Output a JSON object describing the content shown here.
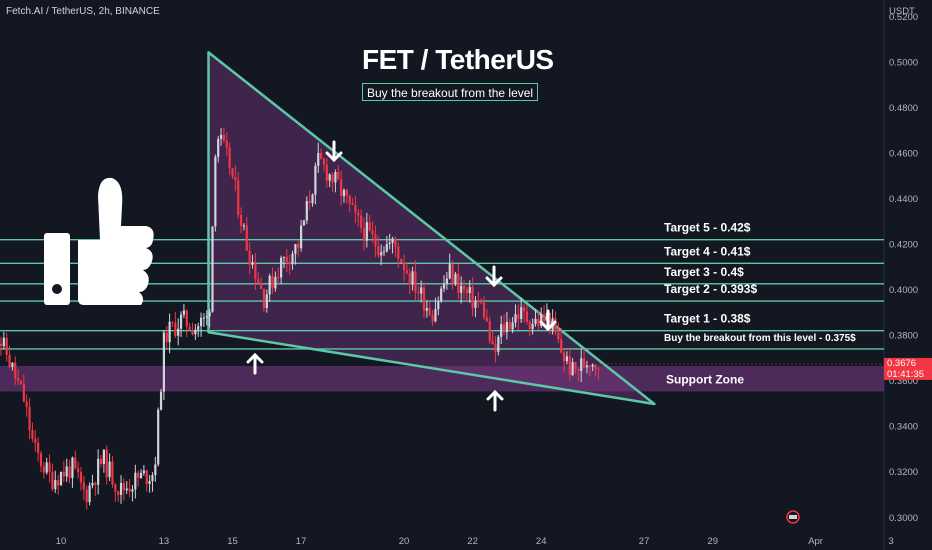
{
  "header": {
    "symbol": "Fetch.AI / TetherUS, 2h, BINANCE"
  },
  "annotations": {
    "title": "FET / TetherUS",
    "subtitle": "Buy the breakout from the level",
    "support_zone_label": "Support Zone",
    "targets": [
      {
        "label": "Target 5 - 0.42$",
        "price": 0.4222
      },
      {
        "label": "Target 4 - 0.41$",
        "price": 0.4118
      },
      {
        "label": "Target 3 - 0.4$",
        "price": 0.4028
      },
      {
        "label": "Target 2 - 0.393$",
        "price": 0.3952
      },
      {
        "label": "Target 1 - 0.38$",
        "price": 0.3822
      },
      {
        "label": "Buy the breakout from this level - 0.375$",
        "price": 0.3742
      }
    ],
    "support_zone": [
      0.3555,
      0.3667
    ]
  },
  "price_axis": {
    "currency": "USDT",
    "ticks": [
      "0.5200",
      "0.5000",
      "0.4800",
      "0.4600",
      "0.4400",
      "0.4200",
      "0.4000",
      "0.3800",
      "0.3600",
      "0.3400",
      "0.3200",
      "0.3000"
    ],
    "current_price": "0.3676",
    "countdown": "01:41:35"
  },
  "time_axis": {
    "ticks": [
      "10",
      "13",
      "15",
      "17",
      "20",
      "22",
      "24",
      "27",
      "29",
      "Apr",
      "3"
    ]
  },
  "colors": {
    "background": "#131722",
    "bull": "#d1d4dc",
    "bear": "#f23645",
    "lines": "#5cc8a8",
    "triangle_fill": "#7b3a86",
    "zone_fill": "#7b3a86",
    "price_tag": "#f23645"
  },
  "chart_data": {
    "type": "candlestick",
    "title": "FET / TetherUS",
    "ylabel": "USDT",
    "ylim": [
      0.2955,
      0.5275
    ],
    "x_ticks": [
      "10",
      "13",
      "15",
      "17",
      "20",
      "22",
      "24",
      "27",
      "29",
      "Apr",
      "3"
    ],
    "grid": false,
    "triangle": {
      "top": [
        14.3,
        0.5045
      ],
      "bottom_left": [
        14.3,
        0.3815
      ],
      "bottom_right": [
        27.3,
        0.35
      ]
    },
    "keypoints": [
      [
        8.0,
        0.387
      ],
      [
        8.5,
        0.372
      ],
      [
        9.0,
        0.352
      ],
      [
        9.3,
        0.33
      ],
      [
        9.8,
        0.317
      ],
      [
        10.4,
        0.322
      ],
      [
        10.8,
        0.31
      ],
      [
        11.3,
        0.326
      ],
      [
        11.8,
        0.312
      ],
      [
        12.3,
        0.317
      ],
      [
        12.8,
        0.32
      ],
      [
        13.1,
        0.38
      ],
      [
        13.6,
        0.387
      ],
      [
        14.0,
        0.384
      ],
      [
        14.4,
        0.388
      ],
      [
        14.6,
        0.47
      ],
      [
        15.0,
        0.455
      ],
      [
        15.5,
        0.42
      ],
      [
        16.0,
        0.397
      ],
      [
        16.5,
        0.412
      ],
      [
        17.0,
        0.42
      ],
      [
        17.6,
        0.457
      ],
      [
        18.2,
        0.445
      ],
      [
        18.7,
        0.43
      ],
      [
        19.3,
        0.42
      ],
      [
        19.8,
        0.42
      ],
      [
        20.3,
        0.405
      ],
      [
        20.9,
        0.39
      ],
      [
        21.4,
        0.408
      ],
      [
        21.9,
        0.398
      ],
      [
        22.4,
        0.392
      ],
      [
        22.7,
        0.37
      ],
      [
        22.9,
        0.382
      ],
      [
        23.4,
        0.39
      ],
      [
        23.9,
        0.386
      ],
      [
        24.3,
        0.388
      ],
      [
        24.7,
        0.372
      ],
      [
        25.0,
        0.364
      ],
      [
        25.5,
        0.37
      ],
      [
        25.7,
        0.368
      ]
    ]
  }
}
